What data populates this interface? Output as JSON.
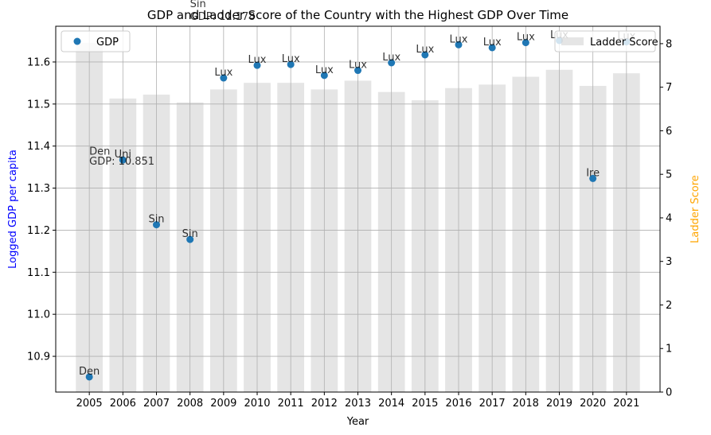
{
  "chart_data": {
    "type": "bar+scatter",
    "title": "GDP and Ladder Score of the Country with the Highest GDP Over Time",
    "xlabel": "Year",
    "ylabel_left": "Logged GDP per capita",
    "ylabel_right": "Ladder Score",
    "ylabel_left_color": "#0000ff",
    "ylabel_right_color": "#ffa500",
    "categories": [
      "2005",
      "2006",
      "2007",
      "2008",
      "2009",
      "2010",
      "2011",
      "2012",
      "2013",
      "2014",
      "2015",
      "2016",
      "2017",
      "2018",
      "2019",
      "2020",
      "2021"
    ],
    "x_ticks": [
      "2005",
      "2006",
      "2007",
      "2008",
      "2009",
      "2010",
      "2011",
      "2012",
      "2013",
      "2014",
      "2015",
      "2016",
      "2017",
      "2018",
      "2019",
      "2020",
      "2021"
    ],
    "left_axis": {
      "ylim": [
        10.815,
        11.685
      ],
      "ticks": [
        10.9,
        11.0,
        11.1,
        11.2,
        11.3,
        11.4,
        11.5,
        11.6
      ],
      "tick_labels": [
        "10.9",
        "11.0",
        "11.1",
        "11.2",
        "11.3",
        "11.4",
        "11.5",
        "11.6"
      ]
    },
    "right_axis": {
      "ylim": [
        0,
        8.4
      ],
      "ticks": [
        0,
        1,
        2,
        3,
        4,
        5,
        6,
        7,
        8
      ],
      "tick_labels": [
        "0",
        "1",
        "2",
        "3",
        "4",
        "5",
        "6",
        "7",
        "8"
      ]
    },
    "series": [
      {
        "name": "GDP",
        "kind": "scatter",
        "axis": "left",
        "color": "#1f77b4",
        "values": [
          10.851,
          11.367,
          11.213,
          11.178,
          11.562,
          11.592,
          11.594,
          11.568,
          11.58,
          11.598,
          11.617,
          11.641,
          11.634,
          11.646,
          11.651,
          11.323,
          11.648
        ],
        "labels": [
          "Den",
          "Uni",
          "Sin",
          "Sin",
          "Lux",
          "Lux",
          "Lux",
          "Lux",
          "Lux",
          "Lux",
          "Lux",
          "Lux",
          "Lux",
          "Lux",
          "Lux",
          "Ire",
          "Lux"
        ]
      },
      {
        "name": "Ladder Score",
        "kind": "bar",
        "axis": "right",
        "color": "#d3d3d3",
        "values": [
          8.02,
          6.74,
          6.83,
          6.65,
          6.95,
          7.1,
          7.1,
          6.95,
          7.15,
          6.89,
          6.7,
          6.98,
          7.06,
          7.24,
          7.4,
          7.03,
          7.32
        ]
      }
    ],
    "annotations": [
      {
        "text": "Den",
        "x": "2005",
        "y": 11.38
      },
      {
        "text": "GDP: 10.851",
        "x": "2005",
        "y": 11.356
      },
      {
        "text": "Sin",
        "x": "2008",
        "y": 11.73
      },
      {
        "text": "GDP: 11.178",
        "x": "2008",
        "y": 11.7
      }
    ],
    "legend_left": "top-left",
    "legend_right": "top-right",
    "grid": true
  }
}
